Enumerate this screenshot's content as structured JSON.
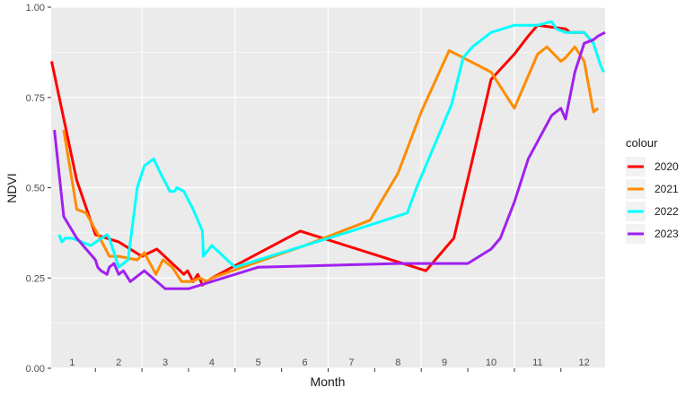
{
  "chart_data": {
    "type": "line",
    "title": "",
    "xlabel": "Month",
    "ylabel": "NDVI",
    "xlim": [
      0.55,
      12.45
    ],
    "ylim": [
      0.0,
      1.0
    ],
    "x_ticks": [
      1,
      2,
      3,
      4,
      5,
      6,
      7,
      8,
      9,
      10,
      11,
      12
    ],
    "x_tick_labels": [
      "1",
      "2",
      "3",
      "4",
      "5",
      "6",
      "7",
      "8",
      "9",
      "10",
      "11",
      "12"
    ],
    "y_ticks": [
      0.0,
      0.25,
      0.5,
      0.75,
      1.0
    ],
    "y_tick_labels": [
      "0.00",
      "0.25",
      "0.50",
      "0.75",
      "1.00"
    ],
    "grid": true,
    "legend": {
      "title": "colour",
      "position": "right"
    },
    "series": [
      {
        "name": "2020",
        "color": "#ff0000",
        "x": [
          0.56,
          1.1,
          1.5,
          2.0,
          2.5,
          2.82,
          3.4,
          3.48,
          3.6,
          3.7,
          3.8,
          4.0,
          5.9,
          8.6,
          9.2,
          9.55,
          10.0,
          10.5,
          10.8,
          11.0,
          11.6,
          11.7,
          12.0,
          12.2
        ],
        "y": [
          0.85,
          0.52,
          0.37,
          0.35,
          0.31,
          0.33,
          0.26,
          0.27,
          0.24,
          0.26,
          0.23,
          0.25,
          0.38,
          0.27,
          0.36,
          0.55,
          0.8,
          0.87,
          0.92,
          0.95,
          0.94,
          0.93,
          0.93,
          0.9
        ]
      },
      {
        "name": "2021",
        "color": "#ff8c00",
        "x": [
          0.82,
          1.1,
          1.3,
          1.6,
          1.8,
          2.0,
          2.4,
          2.55,
          2.8,
          2.95,
          3.15,
          3.35,
          3.55,
          3.75,
          3.9,
          4.0,
          6.0,
          7.4,
          8.0,
          8.5,
          9.1,
          10.0,
          10.5,
          11.0,
          11.2,
          11.5,
          11.6,
          11.8,
          12.0,
          12.2,
          12.3
        ],
        "y": [
          0.66,
          0.44,
          0.43,
          0.36,
          0.31,
          0.31,
          0.3,
          0.32,
          0.26,
          0.3,
          0.28,
          0.24,
          0.24,
          0.25,
          0.24,
          0.25,
          0.34,
          0.41,
          0.54,
          0.71,
          0.88,
          0.82,
          0.72,
          0.87,
          0.89,
          0.85,
          0.86,
          0.89,
          0.85,
          0.71,
          0.72
        ]
      },
      {
        "name": "2022",
        "color": "#00ffff",
        "x": [
          0.72,
          0.78,
          0.85,
          1.0,
          1.4,
          1.75,
          1.8,
          2.0,
          2.2,
          2.4,
          2.55,
          2.75,
          2.9,
          3.1,
          3.2,
          3.25,
          3.4,
          3.6,
          3.8,
          3.82,
          4.0,
          4.5,
          7.0,
          8.2,
          8.4,
          9.15,
          9.4,
          9.6,
          10.0,
          10.5,
          11.0,
          11.3,
          11.4,
          11.6,
          12.0,
          12.2,
          12.35,
          12.42
        ],
        "y": [
          0.37,
          0.35,
          0.36,
          0.36,
          0.34,
          0.37,
          0.36,
          0.28,
          0.3,
          0.5,
          0.56,
          0.58,
          0.54,
          0.49,
          0.49,
          0.5,
          0.49,
          0.44,
          0.38,
          0.31,
          0.34,
          0.28,
          0.38,
          0.43,
          0.5,
          0.73,
          0.86,
          0.89,
          0.93,
          0.95,
          0.95,
          0.96,
          0.94,
          0.93,
          0.93,
          0.9,
          0.84,
          0.82
        ]
      },
      {
        "name": "2023",
        "color": "#a020f0",
        "x": [
          0.62,
          0.82,
          1.1,
          1.3,
          1.5,
          1.55,
          1.62,
          1.75,
          1.8,
          1.9,
          2.0,
          2.1,
          2.25,
          2.35,
          2.55,
          3.0,
          3.5,
          5.0,
          8.0,
          8.5,
          9.1,
          9.5,
          10.0,
          10.2,
          10.5,
          10.8,
          11.3,
          11.5,
          11.6,
          11.8,
          12.0,
          12.2,
          12.3,
          12.45
        ],
        "y": [
          0.66,
          0.42,
          0.36,
          0.33,
          0.3,
          0.28,
          0.27,
          0.26,
          0.28,
          0.29,
          0.26,
          0.27,
          0.24,
          0.25,
          0.27,
          0.22,
          0.22,
          0.28,
          0.29,
          0.29,
          0.29,
          0.29,
          0.33,
          0.36,
          0.46,
          0.58,
          0.7,
          0.72,
          0.69,
          0.82,
          0.9,
          0.91,
          0.92,
          0.93
        ]
      }
    ]
  }
}
